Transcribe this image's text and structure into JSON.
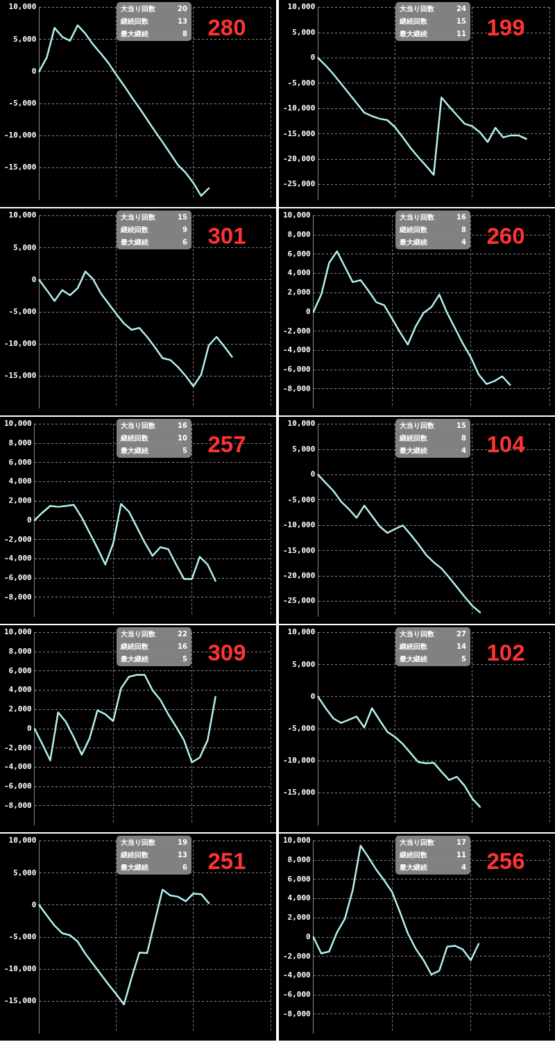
{
  "chart_data": [
    {
      "type": "line",
      "title": "280",
      "annotations": [
        "大当り回数",
        "20",
        "継続回数",
        "13",
        "最大継続",
        "8"
      ],
      "categories": [
        null,
        null,
        null,
        null,
        null,
        null,
        null,
        null,
        null,
        null,
        null,
        null,
        null,
        null,
        null,
        null,
        null,
        null,
        null,
        null,
        null,
        null,
        null,
        null,
        null,
        null,
        null,
        null,
        null,
        null,
        null
      ],
      "series": [
        {
          "color": "#b4f0f0",
          "values": [
            0,
            2200,
            6800,
            5400,
            4800,
            7200,
            5900,
            4200,
            2800,
            1300,
            -500,
            -2200,
            -4000,
            -5700,
            -7500,
            -9300,
            -11000,
            -12800,
            -14600,
            -15800,
            -17400,
            -19400,
            -18200,
            null,
            null,
            null,
            null,
            null,
            null,
            null,
            null
          ]
        }
      ],
      "ylim": [
        -20000,
        10000
      ],
      "yticks": [
        {
          "value": 10000,
          "label": "10,000"
        },
        {
          "value": 5000,
          "label": "5,000"
        },
        {
          "value": 0,
          "label": "0"
        },
        {
          "value": -5000,
          "label": "-5,000"
        },
        {
          "value": -10000,
          "label": "-10,000"
        },
        {
          "value": -15000,
          "label": "-15,000"
        }
      ],
      "grid": true,
      "tick_labels": "y",
      "marker": "none"
    },
    {
      "type": "line",
      "title": "199",
      "annotations": [
        "大当り回数",
        "24",
        "継続回数",
        "15",
        "最大継続",
        "11"
      ],
      "categories": [
        null,
        null,
        null,
        null,
        null,
        null,
        null,
        null,
        null,
        null,
        null,
        null,
        null,
        null,
        null,
        null,
        null,
        null,
        null,
        null,
        null,
        null,
        null,
        null,
        null,
        null,
        null,
        null,
        null,
        null,
        null
      ],
      "series": [
        {
          "color": "#b4f0f0",
          "values": [
            0,
            -1500,
            -3200,
            -5100,
            -7000,
            -8900,
            -10800,
            -11500,
            -12000,
            -12300,
            -13700,
            -15700,
            -17800,
            -19600,
            -21300,
            -23100,
            -7800,
            -9600,
            -11300,
            -13000,
            -13500,
            -14700,
            -16600,
            -13800,
            -15700,
            -15300,
            -15300,
            -16000,
            null,
            null,
            null
          ]
        }
      ],
      "ylim": [
        -28000,
        10000
      ],
      "yticks": [
        {
          "value": 10000,
          "label": "10,000"
        },
        {
          "value": 5000,
          "label": "5,000"
        },
        {
          "value": 0,
          "label": "0"
        },
        {
          "value": -5000,
          "label": "-5,000"
        },
        {
          "value": -10000,
          "label": "-10,000"
        },
        {
          "value": -15000,
          "label": "-15,000"
        },
        {
          "value": -20000,
          "label": "-20,000"
        },
        {
          "value": -25000,
          "label": "-25,000"
        }
      ],
      "grid": true,
      "tick_labels": "y",
      "marker": "none"
    },
    {
      "type": "line",
      "title": "301",
      "annotations": [
        "大当り回数",
        "15",
        "継続回数",
        "9",
        "最大継続",
        "6"
      ],
      "categories": [
        null,
        null,
        null,
        null,
        null,
        null,
        null,
        null,
        null,
        null,
        null,
        null,
        null,
        null,
        null,
        null,
        null,
        null,
        null,
        null,
        null,
        null,
        null,
        null,
        null,
        null,
        null,
        null,
        null,
        null,
        null
      ],
      "series": [
        {
          "color": "#b4f0f0",
          "values": [
            0,
            -1600,
            -3300,
            -1600,
            -2400,
            -1300,
            1300,
            100,
            -2100,
            -3700,
            -5300,
            -6800,
            -7800,
            -7500,
            -8900,
            -10500,
            -12200,
            -12500,
            -13600,
            -15000,
            -16600,
            -14800,
            -10200,
            -8900,
            -10400,
            -12000,
            null,
            null,
            null,
            null,
            null
          ]
        }
      ],
      "ylim": [
        -20000,
        10000
      ],
      "yticks": [
        {
          "value": 10000,
          "label": "10,000"
        },
        {
          "value": 5000,
          "label": "5,000"
        },
        {
          "value": 0,
          "label": "0"
        },
        {
          "value": -5000,
          "label": "-5,000"
        },
        {
          "value": -10000,
          "label": "-10,000"
        },
        {
          "value": -15000,
          "label": "-15,000"
        }
      ],
      "grid": true,
      "tick_labels": "y",
      "marker": "none"
    },
    {
      "type": "line",
      "title": "260",
      "annotations": [
        "大当り回数",
        "16",
        "継続回数",
        "8",
        "最大継続",
        "4"
      ],
      "categories": [
        null,
        null,
        null,
        null,
        null,
        null,
        null,
        null,
        null,
        null,
        null,
        null,
        null,
        null,
        null,
        null,
        null,
        null,
        null,
        null,
        null,
        null,
        null,
        null,
        null,
        null,
        null,
        null,
        null,
        null,
        null
      ],
      "series": [
        {
          "color": "#b4f0f0",
          "values": [
            0,
            1800,
            5100,
            6300,
            4700,
            3100,
            3300,
            2200,
            1000,
            700,
            -700,
            -2100,
            -3400,
            -1500,
            -100,
            500,
            1800,
            -100,
            -1700,
            -3300,
            -4700,
            -6500,
            -7500,
            -7200,
            -6700,
            -7600,
            null,
            null,
            null,
            null,
            null
          ]
        }
      ],
      "ylim": [
        -10000,
        10000
      ],
      "yticks": [
        {
          "value": 10000,
          "label": "10,000"
        },
        {
          "value": 8000,
          "label": "8,000"
        },
        {
          "value": 6000,
          "label": "6,000"
        },
        {
          "value": 4000,
          "label": "4,000"
        },
        {
          "value": 2000,
          "label": "2,000"
        },
        {
          "value": 0,
          "label": "0"
        },
        {
          "value": -2000,
          "label": "-2,000"
        },
        {
          "value": -4000,
          "label": "-4,000"
        },
        {
          "value": -6000,
          "label": "-6,000"
        },
        {
          "value": -8000,
          "label": "-8,000"
        }
      ],
      "grid": true,
      "tick_labels": "y",
      "marker": "none"
    },
    {
      "type": "line",
      "title": "257",
      "annotations": [
        "大当り回数",
        "16",
        "継続回数",
        "10",
        "最大継続",
        "5"
      ],
      "categories": [
        null,
        null,
        null,
        null,
        null,
        null,
        null,
        null,
        null,
        null,
        null,
        null,
        null,
        null,
        null,
        null,
        null,
        null,
        null,
        null,
        null,
        null,
        null,
        null,
        null,
        null,
        null,
        null,
        null,
        null,
        null
      ],
      "series": [
        {
          "color": "#b4f0f0",
          "values": [
            0,
            800,
            1500,
            1400,
            1500,
            1600,
            300,
            -1300,
            -2900,
            -4600,
            -2400,
            1700,
            900,
            -700,
            -2300,
            -3700,
            -2800,
            -3000,
            -4600,
            -6100,
            -6100,
            -3800,
            -4600,
            -6300,
            null,
            null,
            null,
            null,
            null,
            null,
            null
          ]
        }
      ],
      "ylim": [
        -10000,
        10000
      ],
      "yticks": [
        {
          "value": 10000,
          "label": "10,000"
        },
        {
          "value": 8000,
          "label": "8,000"
        },
        {
          "value": 6000,
          "label": "6,000"
        },
        {
          "value": 4000,
          "label": "4,000"
        },
        {
          "value": 2000,
          "label": "2,000"
        },
        {
          "value": 0,
          "label": "0"
        },
        {
          "value": -2000,
          "label": "-2,000"
        },
        {
          "value": -4000,
          "label": "-4,000"
        },
        {
          "value": -6000,
          "label": "-6,000"
        },
        {
          "value": -8000,
          "label": "-8,000"
        }
      ],
      "grid": true,
      "tick_labels": "y",
      "marker": "none"
    },
    {
      "type": "line",
      "title": "104",
      "annotations": [
        "大当り回数",
        "15",
        "継続回数",
        "8",
        "最大継続",
        "4"
      ],
      "categories": [
        null,
        null,
        null,
        null,
        null,
        null,
        null,
        null,
        null,
        null,
        null,
        null,
        null,
        null,
        null,
        null,
        null,
        null,
        null,
        null,
        null,
        null,
        null,
        null,
        null,
        null,
        null,
        null,
        null,
        null,
        null
      ],
      "series": [
        {
          "color": "#b4f0f0",
          "values": [
            0,
            -1600,
            -3200,
            -5300,
            -6800,
            -8500,
            -6100,
            -8100,
            -10200,
            -11500,
            -10700,
            -10000,
            -11800,
            -13700,
            -15800,
            -17300,
            -18500,
            -20300,
            -22200,
            -24100,
            -25900,
            -27200,
            null,
            null,
            null,
            null,
            null,
            null,
            null,
            null,
            null
          ]
        }
      ],
      "ylim": [
        -28000,
        10000
      ],
      "yticks": [
        {
          "value": 10000,
          "label": "10,000"
        },
        {
          "value": 5000,
          "label": "5,000"
        },
        {
          "value": 0,
          "label": "0"
        },
        {
          "value": -5000,
          "label": "-5,000"
        },
        {
          "value": -10000,
          "label": "-10,000"
        },
        {
          "value": -15000,
          "label": "-15,000"
        },
        {
          "value": -20000,
          "label": "-20,000"
        },
        {
          "value": -25000,
          "label": "-25,000"
        }
      ],
      "grid": true,
      "tick_labels": "y",
      "marker": "none"
    },
    {
      "type": "line",
      "title": "309",
      "annotations": [
        "大当り回数",
        "22",
        "継続回数",
        "16",
        "最大継続",
        "5"
      ],
      "categories": [
        null,
        null,
        null,
        null,
        null,
        null,
        null,
        null,
        null,
        null,
        null,
        null,
        null,
        null,
        null,
        null,
        null,
        null,
        null,
        null,
        null,
        null,
        null,
        null,
        null,
        null,
        null,
        null,
        null,
        null,
        null
      ],
      "series": [
        {
          "color": "#b4f0f0",
          "values": [
            0,
            -1600,
            -3300,
            1700,
            700,
            -900,
            -2700,
            -1000,
            1900,
            1500,
            800,
            4200,
            5400,
            5600,
            5600,
            4000,
            3000,
            1500,
            200,
            -1200,
            -3500,
            -3000,
            -1200,
            3300,
            null,
            null,
            null,
            null,
            null,
            null,
            null
          ]
        }
      ],
      "ylim": [
        -10000,
        10000
      ],
      "yticks": [
        {
          "value": 10000,
          "label": "10,000"
        },
        {
          "value": 8000,
          "label": "8,000"
        },
        {
          "value": 6000,
          "label": "6,000"
        },
        {
          "value": 4000,
          "label": "4,000"
        },
        {
          "value": 2000,
          "label": "2,000"
        },
        {
          "value": 0,
          "label": "0"
        },
        {
          "value": -2000,
          "label": "-2,000"
        },
        {
          "value": -4000,
          "label": "-4,000"
        },
        {
          "value": -6000,
          "label": "-6,000"
        },
        {
          "value": -8000,
          "label": "-8,000"
        }
      ],
      "grid": true,
      "tick_labels": "y",
      "marker": "none"
    },
    {
      "type": "line",
      "title": "102",
      "annotations": [
        "大当り回数",
        "27",
        "継続回数",
        "14",
        "最大継続",
        "5"
      ],
      "categories": [
        null,
        null,
        null,
        null,
        null,
        null,
        null,
        null,
        null,
        null,
        null,
        null,
        null,
        null,
        null,
        null,
        null,
        null,
        null,
        null,
        null,
        null,
        null,
        null,
        null,
        null,
        null,
        null,
        null,
        null,
        null
      ],
      "series": [
        {
          "color": "#b4f0f0",
          "values": [
            0,
            -1800,
            -3400,
            -4100,
            -3600,
            -3100,
            -4800,
            -1800,
            -3700,
            -5500,
            -6300,
            -7400,
            -8800,
            -10200,
            -10400,
            -10300,
            -11700,
            -13000,
            -12500,
            -13900,
            -15900,
            -17200,
            null,
            null,
            null,
            null,
            null,
            null,
            null,
            null,
            null
          ]
        }
      ],
      "ylim": [
        -20000,
        10000
      ],
      "yticks": [
        {
          "value": 10000,
          "label": "10,000"
        },
        {
          "value": 5000,
          "label": "5,000"
        },
        {
          "value": 0,
          "label": "0"
        },
        {
          "value": -5000,
          "label": "-5,000"
        },
        {
          "value": -10000,
          "label": "-10,000"
        },
        {
          "value": -15000,
          "label": "-15,000"
        }
      ],
      "grid": true,
      "tick_labels": "y",
      "marker": "none"
    },
    {
      "type": "line",
      "title": "251",
      "annotations": [
        "大当り回数",
        "19",
        "継続回数",
        "13",
        "最大継続",
        "6"
      ],
      "categories": [
        null,
        null,
        null,
        null,
        null,
        null,
        null,
        null,
        null,
        null,
        null,
        null,
        null,
        null,
        null,
        null,
        null,
        null,
        null,
        null,
        null,
        null,
        null,
        null,
        null,
        null,
        null,
        null,
        null,
        null,
        null
      ],
      "series": [
        {
          "color": "#b4f0f0",
          "values": [
            0,
            -1600,
            -3200,
            -4400,
            -4700,
            -5700,
            -7600,
            -9200,
            -10800,
            -12400,
            -13900,
            -15500,
            -11300,
            -7400,
            -7500,
            -2500,
            2400,
            1500,
            1300,
            600,
            1800,
            1700,
            300,
            null,
            null,
            null,
            null,
            null,
            null,
            null,
            null
          ]
        }
      ],
      "ylim": [
        -20000,
        10000
      ],
      "yticks": [
        {
          "value": 10000,
          "label": "10,000"
        },
        {
          "value": 5000,
          "label": "5,000"
        },
        {
          "value": 0,
          "label": "0"
        },
        {
          "value": -5000,
          "label": "-5,000"
        },
        {
          "value": -10000,
          "label": "-10,000"
        },
        {
          "value": -15000,
          "label": "-15,000"
        }
      ],
      "grid": true,
      "tick_labels": "y",
      "marker": "none"
    },
    {
      "type": "line",
      "title": "256",
      "annotations": [
        "大当り回数",
        "17",
        "継続回数",
        "11",
        "最大継続",
        "4"
      ],
      "categories": [
        null,
        null,
        null,
        null,
        null,
        null,
        null,
        null,
        null,
        null,
        null,
        null,
        null,
        null,
        null,
        null,
        null,
        null,
        null,
        null,
        null,
        null,
        null,
        null,
        null,
        null,
        null,
        null,
        null,
        null,
        null
      ],
      "series": [
        {
          "color": "#b4f0f0",
          "values": [
            0,
            -1700,
            -1500,
            500,
            1900,
            4900,
            9500,
            8300,
            7000,
            5900,
            4700,
            2600,
            400,
            -1200,
            -2400,
            -3900,
            -3500,
            -1000,
            -900,
            -1300,
            -2400,
            -700,
            null,
            null,
            null,
            null,
            null,
            null,
            null,
            null,
            null
          ]
        }
      ],
      "ylim": [
        -10000,
        10000
      ],
      "yticks": [
        {
          "value": 10000,
          "label": "10,000"
        },
        {
          "value": 8000,
          "label": "8,000"
        },
        {
          "value": 6000,
          "label": "6,000"
        },
        {
          "value": 4000,
          "label": "4,000"
        },
        {
          "value": 2000,
          "label": "2,000"
        },
        {
          "value": 0,
          "label": "0"
        },
        {
          "value": -2000,
          "label": "-2,000"
        },
        {
          "value": -4000,
          "label": "-4,000"
        },
        {
          "value": -6000,
          "label": "-6,000"
        },
        {
          "value": -8000,
          "label": "-8,000"
        }
      ],
      "grid": true,
      "tick_labels": "y",
      "marker": "none"
    }
  ]
}
